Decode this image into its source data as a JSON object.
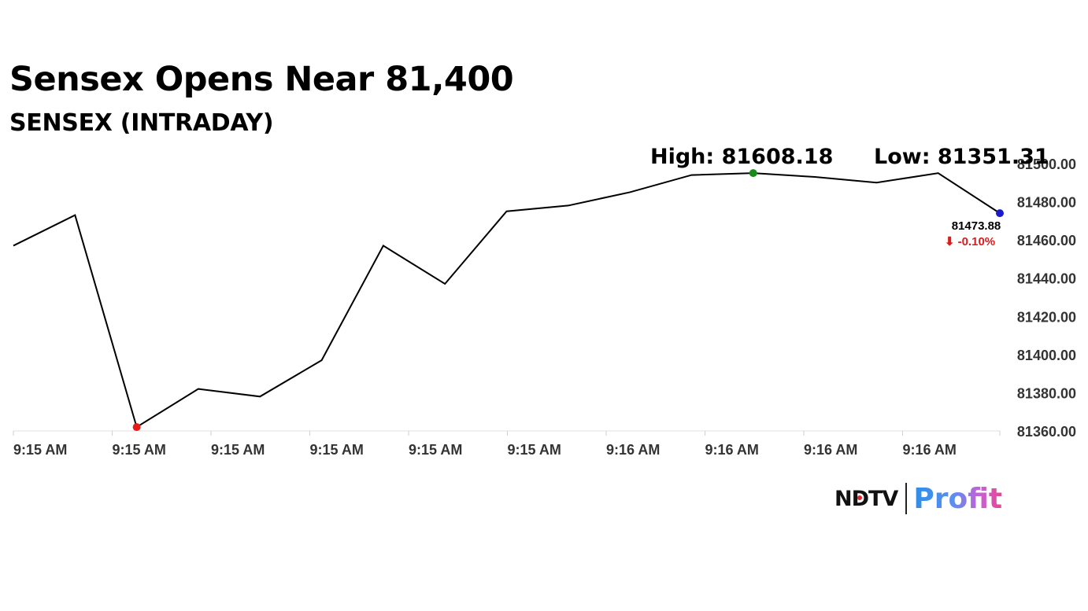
{
  "chart_data": {
    "type": "line",
    "title": "Sensex Opens Near 81,400",
    "subtitle": "SENSEX (INTRADAY)",
    "high_label": "High: 81608.18",
    "low_label": "Low: 81351.31",
    "last_value_label": "81473.88",
    "change_label": "⬇ -0.10%",
    "x_tick_labels": [
      "9:15 AM",
      "9:15 AM",
      "9:15 AM",
      "9:15 AM",
      "9:15 AM",
      "9:15 AM",
      "9:16 AM",
      "9:16 AM",
      "9:16 AM",
      "9:16 AM"
    ],
    "y_ticks": [
      81360,
      81380,
      81400,
      81420,
      81440,
      81460,
      81480,
      81500
    ],
    "y_tick_labels": [
      "81360.00",
      "81380.00",
      "81400.00",
      "81420.00",
      "81440.00",
      "81460.00",
      "81480.00",
      "81500.00"
    ],
    "ylim": [
      81360,
      81500
    ],
    "series": [
      {
        "values": [
          81457,
          81473,
          81362,
          81382,
          81378,
          81397,
          81457,
          81437,
          81475,
          81478,
          81485,
          81494,
          81495,
          81493,
          81490,
          81495,
          81474
        ]
      }
    ],
    "markers": [
      {
        "index": 2,
        "color": "#e81919"
      },
      {
        "index": 12,
        "color": "#1a8a1a"
      },
      {
        "index": 16,
        "color": "#1a1acc"
      }
    ],
    "line_color": "#000000",
    "grid": false,
    "axis_color": "#e0e0e0",
    "change_color": "#d91c1c"
  },
  "brand": {
    "ndtv": "NDTV",
    "profit": "Profit"
  }
}
